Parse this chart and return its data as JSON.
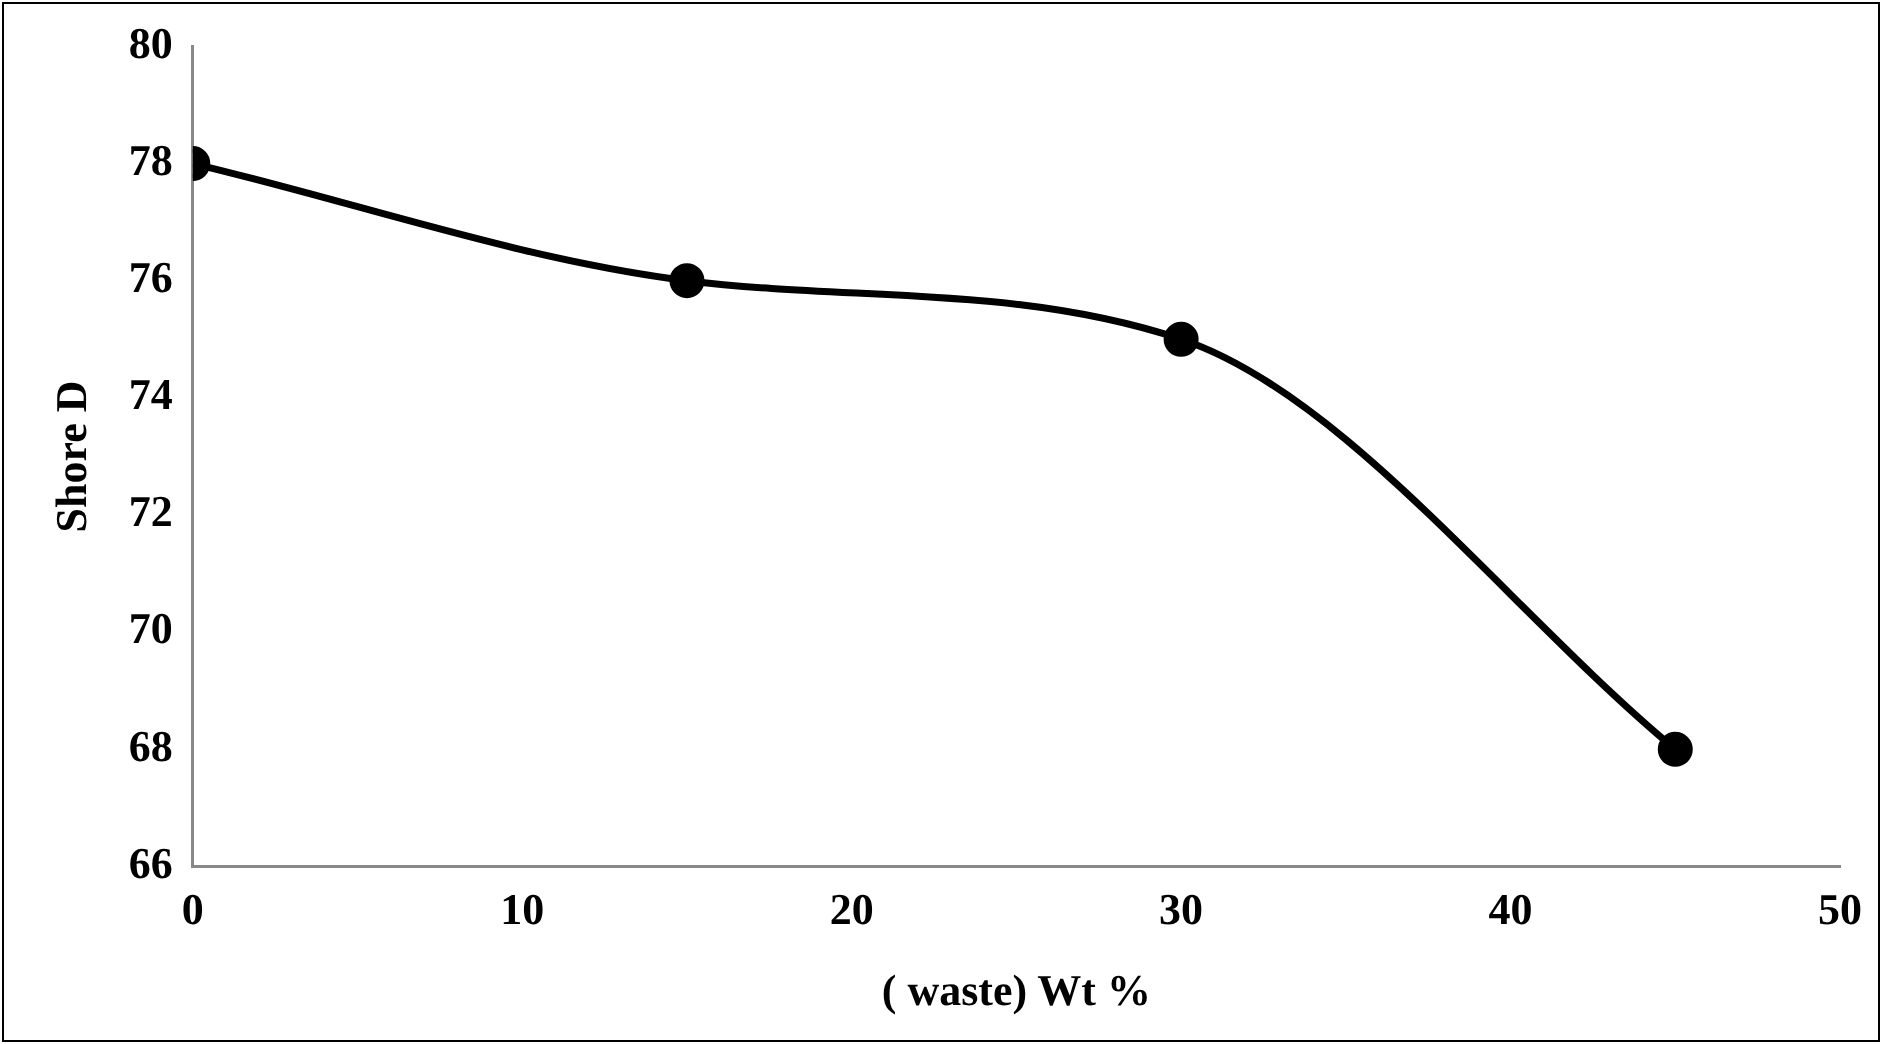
{
  "chart_data": {
    "type": "line",
    "xlabel": "( waste) Wt %",
    "ylabel": "Shore D",
    "x": [
      0,
      15,
      30,
      45
    ],
    "series": [
      {
        "color": "#000000",
        "values": [
          78,
          76,
          75,
          68
        ]
      }
    ],
    "xlim": [
      0,
      50
    ],
    "xticks": [
      0,
      10,
      20,
      30,
      40,
      50
    ],
    "ylim": [
      66,
      80
    ],
    "yticks": [
      66,
      68,
      70,
      72,
      74,
      76,
      78,
      80
    ],
    "grid": false,
    "legend": false,
    "marker": "circle",
    "line_style": "solid"
  }
}
